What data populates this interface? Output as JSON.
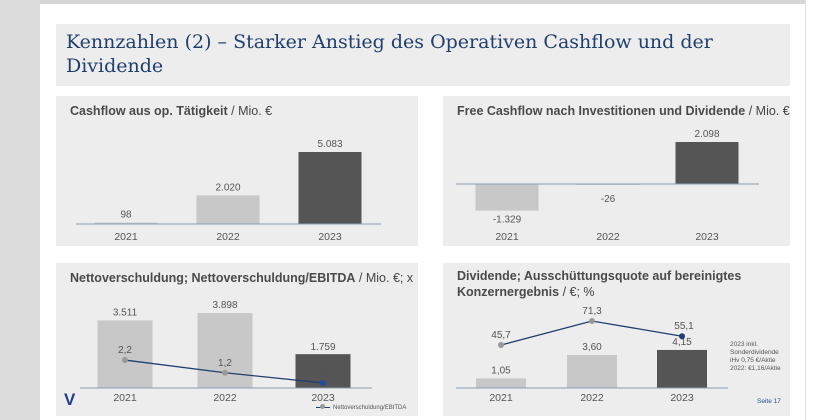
{
  "slide": {
    "title": "Kennzahlen (2) – Starker Anstieg des Operativen Cashflow und der Dividende",
    "logo": "V",
    "page_label": "Seite 17"
  },
  "colors": {
    "title": "#1f3f6e",
    "bar_light": "#c8c8c8",
    "bar_dark": "#555555",
    "line": "#1f3f6e",
    "panel_bg": "#ededed"
  },
  "chart_data": [
    {
      "type": "bar",
      "title_bold": "Cashflow aus op. Tätigkeit",
      "title_unit": " / Mio. €",
      "categories": [
        "2021",
        "2022",
        "2023"
      ],
      "values": [
        98,
        2020,
        5083
      ],
      "labels": [
        "98",
        "2.020",
        "5.083"
      ]
    },
    {
      "type": "bar",
      "title_bold": "Free Cashflow nach Investitionen und Dividende",
      "title_unit": " / Mio. €",
      "categories": [
        "2021",
        "2022",
        "2023"
      ],
      "values": [
        -1329,
        -26,
        2098
      ],
      "labels": [
        "-1.329",
        "-26",
        "2.098"
      ]
    },
    {
      "type": "bar+line",
      "title_bold": "Nettoverschuldung; Nettoverschuldung/EBITDA",
      "title_unit": " / Mio. €; x",
      "categories": [
        "2021",
        "2022",
        "2023"
      ],
      "values": [
        3511,
        3898,
        1759
      ],
      "labels": [
        "3.511",
        "3.898",
        "1.759"
      ],
      "line": {
        "name": "Nettoverschuldung/EBITDA",
        "values": [
          2.2,
          1.2,
          0.4
        ],
        "labels": [
          "2,2",
          "1,2",
          "0,4"
        ]
      }
    },
    {
      "type": "bar+line",
      "title_bold": "Dividende; Ausschüttungsquote auf bereinigtes Konzernergebnis",
      "title_unit": " / €; %",
      "categories": [
        "2021",
        "2022",
        "2023"
      ],
      "values": [
        1.05,
        3.6,
        4.15
      ],
      "labels": [
        "1,05",
        "3,60",
        "4,15"
      ],
      "line": {
        "values": [
          45.7,
          71.3,
          55.1
        ],
        "labels": [
          "45,7",
          "71,3",
          "55,1"
        ]
      },
      "note": [
        "2023 inkl.",
        "Sonderdividende",
        "iHv 0,75 €/Aktie",
        "2022: €1,16/Aktie"
      ]
    }
  ]
}
